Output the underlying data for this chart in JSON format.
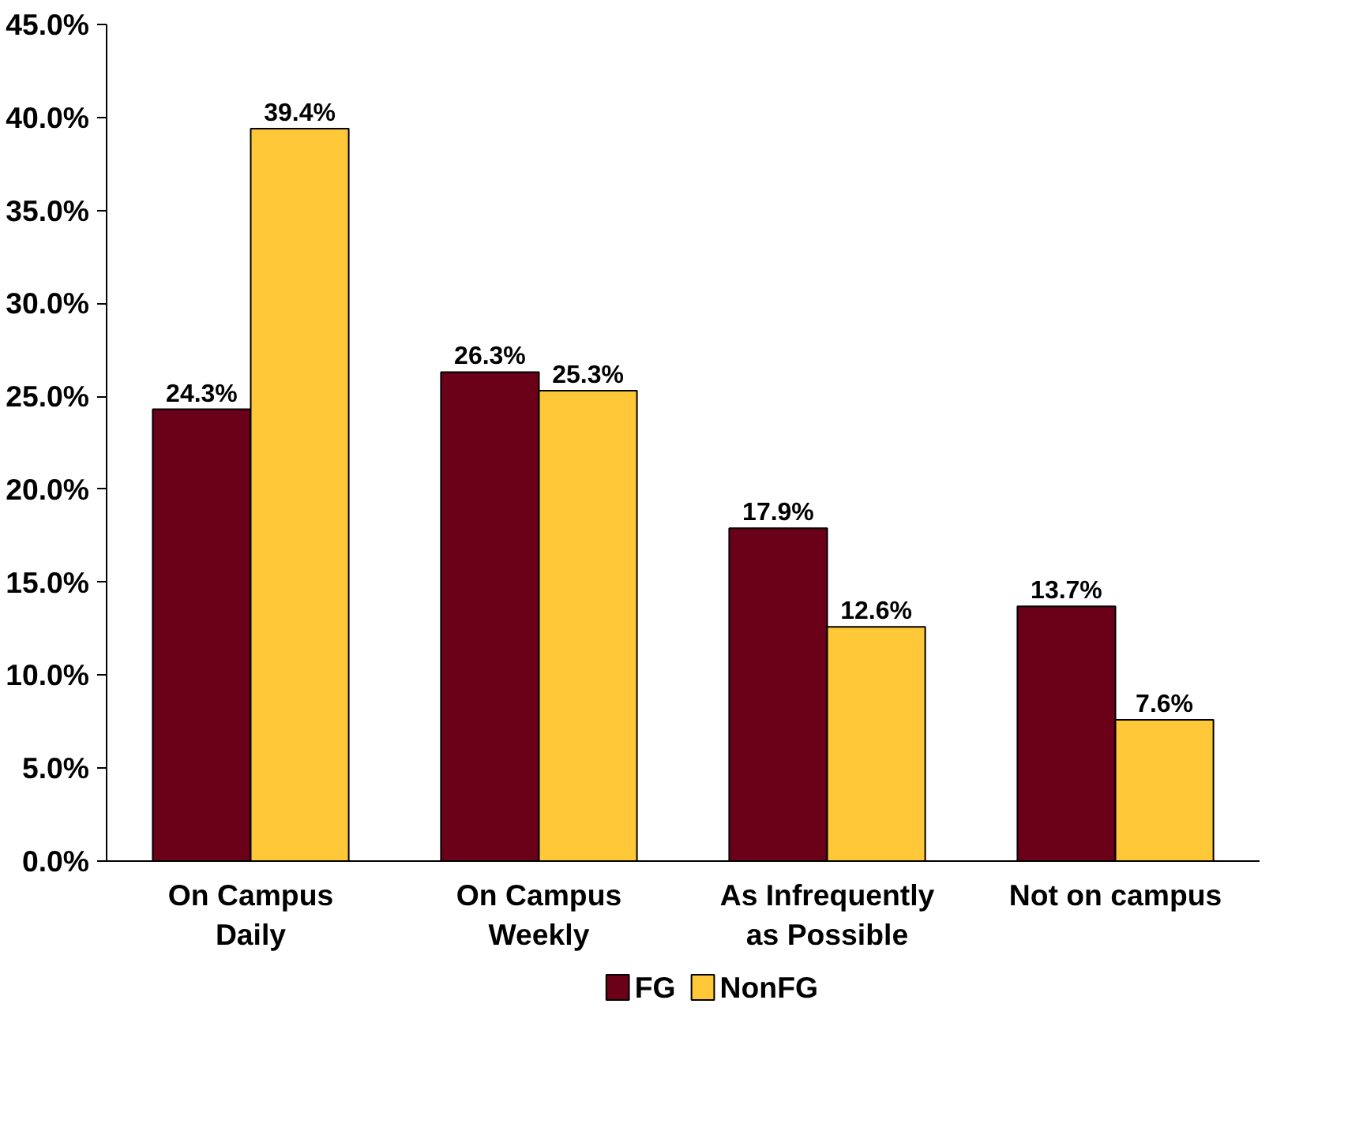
{
  "chart_data": {
    "type": "bar",
    "categories": [
      "On Campus\nDaily",
      "On Campus\nWeekly",
      "As Infrequently\nas Possible",
      "Not on campus"
    ],
    "series": [
      {
        "name": "FG",
        "color": "#6b0019",
        "values": [
          24.3,
          26.3,
          17.9,
          13.7
        ],
        "value_labels": [
          "24.3%",
          "26.3%",
          "17.9%",
          "13.7%"
        ]
      },
      {
        "name": "NonFG",
        "color": "#ffc839",
        "values": [
          39.4,
          25.3,
          12.6,
          7.6
        ],
        "value_labels": [
          "39.4%",
          "25.3%",
          "12.6%",
          "7.6%"
        ]
      }
    ],
    "ylim": [
      0,
      45
    ],
    "yticks": [
      {
        "value": 0,
        "label": "0.0%"
      },
      {
        "value": 5,
        "label": "5.0%"
      },
      {
        "value": 10,
        "label": "10.0%"
      },
      {
        "value": 15,
        "label": "15.0%"
      },
      {
        "value": 20,
        "label": "20.0%"
      },
      {
        "value": 25,
        "label": "25.0%"
      },
      {
        "value": 30,
        "label": "30.0%"
      },
      {
        "value": 35,
        "label": "35.0%"
      },
      {
        "value": 40,
        "label": "40.0%"
      },
      {
        "value": 45,
        "label": "45.0%"
      }
    ],
    "grid": false,
    "legend": "bottom"
  }
}
